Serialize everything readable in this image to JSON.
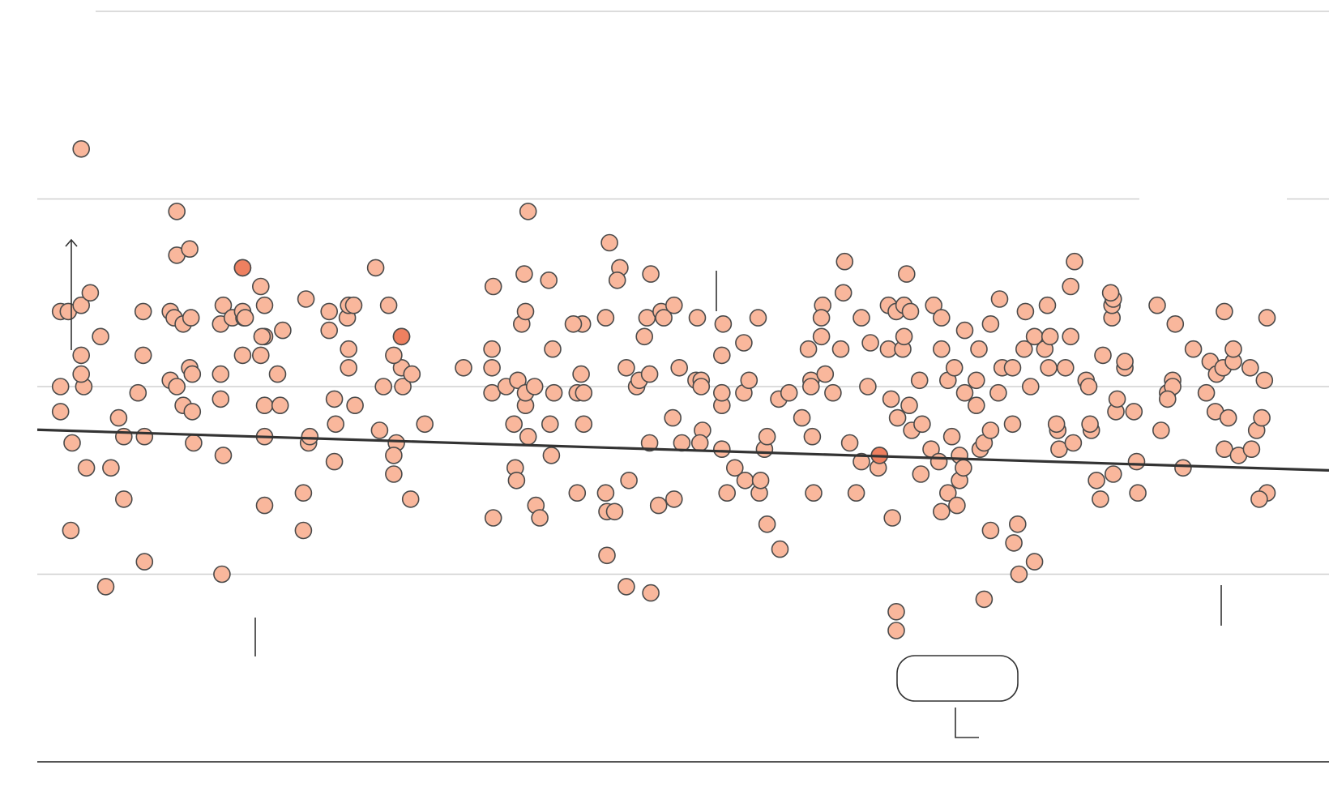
{
  "chart_data": {
    "type": "scatter",
    "title": "",
    "xlabel": "",
    "ylabel": "",
    "xlim": [
      0,
      1000
    ],
    "ylim": [
      0,
      120
    ],
    "gridlines_y": [
      30,
      60,
      90,
      120
    ],
    "grid": true,
    "legend": "none",
    "colors": {
      "light": "#f9b79c",
      "medium": "#ee8060",
      "dark": "#e05538",
      "darkest": "#d62c1a",
      "trend": "#333333",
      "grid": "#d0d0d0"
    },
    "trend_line": {
      "x": [
        0,
        1000
      ],
      "y": [
        53.1,
        46.6
      ]
    },
    "highlight_cluster": {
      "x": [
        665,
        825
      ],
      "y": [
        9.5,
        16.5
      ]
    },
    "points": [
      [
        18,
        72
      ],
      [
        18,
        56
      ],
      [
        24,
        72
      ],
      [
        18,
        60
      ],
      [
        26,
        37
      ],
      [
        27,
        51
      ],
      [
        34,
        73
      ],
      [
        36,
        60
      ],
      [
        34,
        65
      ],
      [
        34,
        62
      ],
      [
        34,
        98
      ],
      [
        49,
        68
      ],
      [
        41,
        75
      ],
      [
        38,
        47
      ],
      [
        53,
        28
      ],
      [
        63,
        55
      ],
      [
        57,
        47
      ],
      [
        83,
        52
      ],
      [
        78,
        59
      ],
      [
        82,
        72
      ],
      [
        83,
        32
      ],
      [
        82,
        65
      ],
      [
        67,
        52
      ],
      [
        67,
        42
      ],
      [
        103,
        61
      ],
      [
        103,
        72
      ],
      [
        106,
        71
      ],
      [
        108,
        88
      ],
      [
        108,
        60
      ],
      [
        108,
        81
      ],
      [
        113,
        70
      ],
      [
        113,
        57
      ],
      [
        118,
        82
      ],
      [
        118,
        63
      ],
      [
        120,
        62
      ],
      [
        119,
        71
      ],
      [
        142,
        70
      ],
      [
        142,
        58
      ],
      [
        144,
        73
      ],
      [
        144,
        49
      ],
      [
        143,
        30
      ],
      [
        142,
        62
      ],
      [
        121,
        51
      ],
      [
        120,
        56
      ],
      [
        151,
        71
      ],
      [
        159,
        79
      ],
      [
        159,
        79
      ],
      [
        159,
        65
      ],
      [
        160,
        71
      ],
      [
        159,
        72
      ],
      [
        176,
        73
      ],
      [
        176,
        68
      ],
      [
        173,
        65
      ],
      [
        173,
        76
      ],
      [
        176,
        57
      ],
      [
        176,
        41
      ],
      [
        174,
        68
      ],
      [
        176,
        52
      ],
      [
        161,
        71
      ],
      [
        190,
        69
      ],
      [
        186,
        62
      ],
      [
        188,
        57
      ],
      [
        206,
        37
      ],
      [
        208,
        74
      ],
      [
        206,
        43
      ],
      [
        210,
        51
      ],
      [
        211,
        52
      ],
      [
        226,
        72
      ],
      [
        226,
        69
      ],
      [
        230,
        58
      ],
      [
        231,
        54
      ],
      [
        230,
        48
      ],
      [
        240,
        71
      ],
      [
        241,
        73
      ],
      [
        246,
        57
      ],
      [
        241,
        66
      ],
      [
        241,
        63
      ],
      [
        245,
        73
      ],
      [
        265,
        53
      ],
      [
        283,
        60
      ],
      [
        282,
        68
      ],
      [
        282,
        63
      ],
      [
        290,
        62
      ],
      [
        262,
        79
      ],
      [
        268,
        60
      ],
      [
        282,
        68
      ],
      [
        272,
        73
      ],
      [
        276,
        65
      ],
      [
        276,
        46
      ],
      [
        278,
        51
      ],
      [
        276,
        49
      ],
      [
        289,
        42
      ],
      [
        300,
        54
      ],
      [
        330,
        63
      ],
      [
        352,
        66
      ],
      [
        353,
        39
      ],
      [
        353,
        76
      ],
      [
        352,
        63
      ],
      [
        352,
        59
      ],
      [
        363,
        60
      ],
      [
        369,
        54
      ],
      [
        375,
        70
      ],
      [
        370,
        47
      ],
      [
        371,
        45
      ],
      [
        377,
        78
      ],
      [
        378,
        57
      ],
      [
        380,
        52
      ],
      [
        380,
        88
      ],
      [
        378,
        72
      ],
      [
        372,
        61
      ],
      [
        378,
        59
      ],
      [
        385,
        60
      ],
      [
        386,
        41
      ],
      [
        389,
        39
      ],
      [
        398,
        49
      ],
      [
        400,
        59
      ],
      [
        397,
        54
      ],
      [
        396,
        77
      ],
      [
        399,
        66
      ],
      [
        418,
        59
      ],
      [
        418,
        43
      ],
      [
        422,
        70
      ],
      [
        421,
        62
      ],
      [
        415,
        70
      ],
      [
        423,
        59
      ],
      [
        423,
        54
      ],
      [
        441,
        40
      ],
      [
        440,
        43
      ],
      [
        441,
        33
      ],
      [
        440,
        71
      ],
      [
        443,
        83
      ],
      [
        451,
        79
      ],
      [
        449,
        77
      ],
      [
        458,
        45
      ],
      [
        447,
        40
      ],
      [
        456,
        28
      ],
      [
        456,
        63
      ],
      [
        464,
        60
      ],
      [
        466,
        61
      ],
      [
        470,
        68
      ],
      [
        474,
        62
      ],
      [
        474,
        51
      ],
      [
        475,
        27
      ],
      [
        475,
        78
      ],
      [
        472,
        71
      ],
      [
        481,
        41
      ],
      [
        483,
        72
      ],
      [
        485,
        71
      ],
      [
        492,
        55
      ],
      [
        497,
        63
      ],
      [
        493,
        42
      ],
      [
        493,
        73
      ],
      [
        499,
        51
      ],
      [
        510,
        61
      ],
      [
        514,
        61
      ],
      [
        515,
        53
      ],
      [
        511,
        71
      ],
      [
        513,
        51
      ],
      [
        514,
        60
      ],
      [
        530,
        65
      ],
      [
        530,
        50
      ],
      [
        530,
        57
      ],
      [
        531,
        70
      ],
      [
        534,
        43
      ],
      [
        530,
        59
      ],
      [
        540,
        47
      ],
      [
        547,
        59
      ],
      [
        547,
        67
      ],
      [
        548,
        45
      ],
      [
        551,
        61
      ],
      [
        559,
        43
      ],
      [
        558,
        71
      ],
      [
        563,
        50
      ],
      [
        560,
        45
      ],
      [
        565,
        38
      ],
      [
        565,
        52
      ],
      [
        574,
        58
      ],
      [
        575,
        34
      ],
      [
        582,
        59
      ],
      [
        592,
        55
      ],
      [
        597,
        66
      ],
      [
        600,
        52
      ],
      [
        601,
        43
      ],
      [
        599,
        61
      ],
      [
        599,
        60
      ],
      [
        608,
        73
      ],
      [
        607,
        68
      ],
      [
        610,
        62
      ],
      [
        607,
        71
      ],
      [
        616,
        59
      ],
      [
        622,
        66
      ],
      [
        624,
        75
      ],
      [
        625,
        80
      ],
      [
        629,
        51
      ],
      [
        638,
        48
      ],
      [
        634,
        43
      ],
      [
        638,
        71
      ],
      [
        645,
        67
      ],
      [
        643,
        60
      ],
      [
        652,
        49
      ],
      [
        651,
        47
      ],
      [
        652,
        49
      ],
      [
        659,
        66
      ],
      [
        659,
        73
      ],
      [
        661,
        58
      ],
      [
        665,
        24
      ],
      [
        662,
        39
      ],
      [
        665,
        21
      ],
      [
        665,
        72
      ],
      [
        666,
        55
      ],
      [
        675,
        57
      ],
      [
        673,
        78
      ],
      [
        671,
        73
      ],
      [
        670,
        66
      ],
      [
        676,
        72
      ],
      [
        671,
        68
      ],
      [
        677,
        53
      ],
      [
        683,
        61
      ],
      [
        684,
        46
      ],
      [
        685,
        54
      ],
      [
        692,
        50
      ],
      [
        694,
        73
      ],
      [
        698,
        48
      ],
      [
        700,
        71
      ],
      [
        700,
        66
      ],
      [
        700,
        40
      ],
      [
        705,
        61
      ],
      [
        705,
        43
      ],
      [
        708,
        52
      ],
      [
        710,
        63
      ],
      [
        712,
        41
      ],
      [
        714,
        45
      ],
      [
        714,
        49
      ],
      [
        717,
        47
      ],
      [
        718,
        59
      ],
      [
        718,
        69
      ],
      [
        727,
        61
      ],
      [
        727,
        57
      ],
      [
        729,
        66
      ],
      [
        730,
        50
      ],
      [
        733,
        26
      ],
      [
        733,
        51
      ],
      [
        738,
        53
      ],
      [
        738,
        37
      ],
      [
        738,
        70
      ],
      [
        744,
        59
      ],
      [
        747,
        63
      ],
      [
        745,
        74
      ],
      [
        755,
        54
      ],
      [
        755,
        63
      ],
      [
        759,
        38
      ],
      [
        756,
        35
      ],
      [
        760,
        30
      ],
      [
        764,
        66
      ],
      [
        765,
        72
      ],
      [
        769,
        60
      ],
      [
        772,
        32
      ],
      [
        772,
        68
      ],
      [
        780,
        66
      ],
      [
        782,
        73
      ],
      [
        784,
        68
      ],
      [
        783,
        63
      ],
      [
        790,
        53
      ],
      [
        789,
        54
      ],
      [
        791,
        50
      ],
      [
        803,
        80
      ],
      [
        796,
        63
      ],
      [
        800,
        68
      ],
      [
        800,
        76
      ],
      [
        802,
        51
      ],
      [
        812,
        61
      ],
      [
        816,
        53
      ],
      [
        815,
        54
      ],
      [
        814,
        60
      ],
      [
        820,
        45
      ],
      [
        823,
        42
      ],
      [
        825,
        65
      ],
      [
        832,
        71
      ],
      [
        832,
        73
      ],
      [
        833,
        46
      ],
      [
        835,
        56
      ],
      [
        833,
        74
      ],
      [
        836,
        58
      ],
      [
        831,
        75
      ],
      [
        842,
        63
      ],
      [
        842,
        64
      ],
      [
        849,
        56
      ],
      [
        852,
        43
      ],
      [
        851,
        48
      ],
      [
        867,
        73
      ],
      [
        870,
        53
      ],
      [
        875,
        59
      ],
      [
        879,
        61
      ],
      [
        881,
        70
      ],
      [
        879,
        60
      ],
      [
        875,
        58
      ],
      [
        887,
        47
      ],
      [
        895,
        66
      ],
      [
        905,
        59
      ],
      [
        908,
        64
      ],
      [
        912,
        56
      ],
      [
        913,
        62
      ],
      [
        919,
        72
      ],
      [
        919,
        50
      ],
      [
        918,
        63
      ],
      [
        922,
        55
      ],
      [
        926,
        64
      ],
      [
        930,
        49
      ],
      [
        926,
        66
      ],
      [
        939,
        63
      ],
      [
        940,
        50
      ],
      [
        944,
        53
      ],
      [
        948,
        55
      ],
      [
        952,
        71
      ],
      [
        952,
        43
      ],
      [
        950,
        61
      ],
      [
        946,
        42
      ]
    ]
  }
}
